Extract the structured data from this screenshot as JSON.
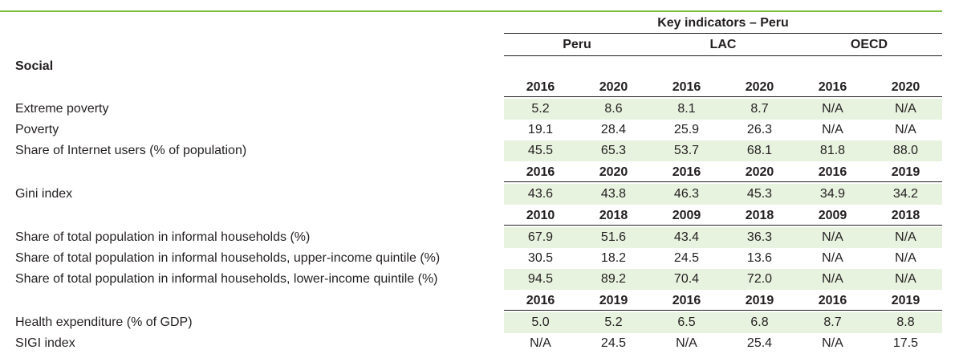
{
  "table": {
    "title": "Key indicators – Peru",
    "groups": [
      "Peru",
      "LAC",
      "OECD"
    ],
    "section": "Social",
    "blocks": [
      {
        "years": [
          "2016",
          "2020",
          "2016",
          "2020",
          "2016",
          "2020"
        ],
        "rows": [
          {
            "label": "Extreme poverty",
            "values": [
              "5.2",
              "8.6",
              "8.1",
              "8.7",
              "N/A",
              "N/A"
            ],
            "shaded": true
          },
          {
            "label": "Poverty",
            "values": [
              "19.1",
              "28.4",
              "25.9",
              "26.3",
              "N/A",
              "N/A"
            ],
            "shaded": false
          },
          {
            "label": "Share of Internet users (% of population)",
            "values": [
              "45.5",
              "65.3",
              "53.7",
              "68.1",
              "81.8",
              "88.0"
            ],
            "shaded": true
          }
        ]
      },
      {
        "years": [
          "2016",
          "2020",
          "2016",
          "2020",
          "2016",
          "2019"
        ],
        "rows": [
          {
            "label": "Gini index",
            "values": [
              "43.6",
              "43.8",
              "46.3",
              "45.3",
              "34.9",
              "34.2"
            ],
            "shaded": true
          }
        ]
      },
      {
        "years": [
          "2010",
          "2018",
          "2009",
          "2018",
          "2009",
          "2018"
        ],
        "rows": [
          {
            "label": "Share of total population in informal households (%)",
            "values": [
              "67.9",
              "51.6",
              "43.4",
              "36.3",
              "N/A",
              "N/A"
            ],
            "shaded": true
          },
          {
            "label": "Share of total population in informal households, upper-income quintile (%)",
            "values": [
              "30.5",
              "18.2",
              "24.5",
              "13.6",
              "N/A",
              "N/A"
            ],
            "shaded": false
          },
          {
            "label": "Share of total population in informal households, lower-income quintile (%)",
            "values": [
              "94.5",
              "89.2",
              "70.4",
              "72.0",
              "N/A",
              "N/A"
            ],
            "shaded": true
          }
        ]
      },
      {
        "years": [
          "2016",
          "2019",
          "2016",
          "2019",
          "2016",
          "2019"
        ],
        "rows": [
          {
            "label": "Health expenditure (% of GDP)",
            "values": [
              "5.0",
              "5.2",
              "6.5",
              "6.8",
              "8.7",
              "8.8"
            ],
            "shaded": true
          },
          {
            "label": "SIGI index",
            "values": [
              "N/A",
              "24.5",
              "N/A",
              "25.4",
              "N/A",
              "17.5"
            ],
            "shaded": false
          }
        ]
      }
    ]
  }
}
